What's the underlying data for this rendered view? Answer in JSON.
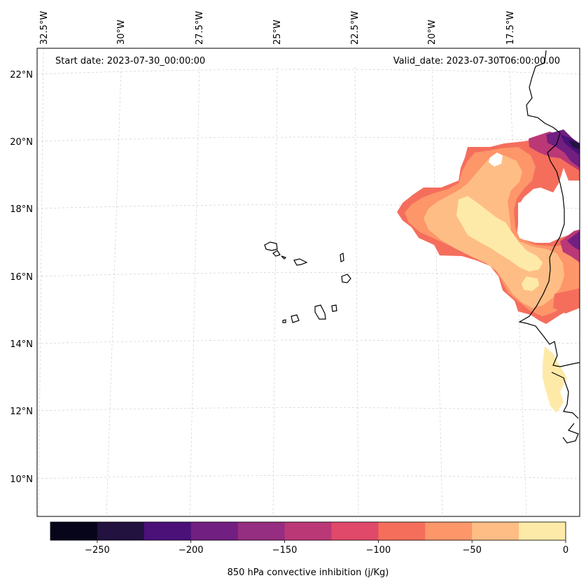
{
  "header": {
    "start_date": "Start date: 2023-07-30_00:00:00",
    "valid_date": "Valid_date: 2023-07-30T06:00:00.00"
  },
  "axes": {
    "lon_labels": [
      "32.5°W",
      "30°W",
      "27.5°W",
      "25°W",
      "22.5°W",
      "20°W",
      "17.5°W"
    ],
    "lat_labels": [
      "22°N",
      "20°N",
      "18°N",
      "16°N",
      "14°N",
      "12°N",
      "10°N"
    ]
  },
  "colorbar": {
    "title": "850 hPa convective inhibition (j/Kg)",
    "ticks": [
      "−250",
      "−200",
      "−150",
      "−100",
      "−50",
      "0"
    ],
    "tick_values": [
      -250,
      -200,
      -150,
      -100,
      -50,
      0
    ],
    "vmin": -275,
    "vmax": 0,
    "colors": [
      "#06051a",
      "#22123f",
      "#4b1179",
      "#711f81",
      "#952d80",
      "#bb3877",
      "#e0496a",
      "#f56e5c",
      "#fd9669",
      "#febd85",
      "#feeaa8"
    ]
  }
}
